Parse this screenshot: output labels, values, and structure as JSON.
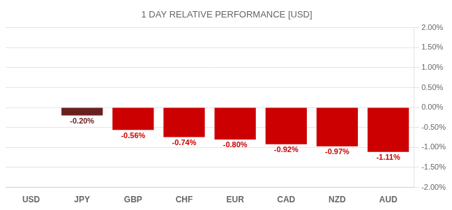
{
  "chart_data": {
    "type": "bar",
    "title": "1 DAY RELATIVE PERFORMANCE [USD]",
    "categories": [
      "USD",
      "JPY",
      "GBP",
      "CHF",
      "EUR",
      "CAD",
      "NZD",
      "AUD"
    ],
    "values": [
      0.0,
      -0.2,
      -0.56,
      -0.74,
      -0.8,
      -0.92,
      -0.97,
      -1.11
    ],
    "value_labels": [
      null,
      "-0.20%",
      "-0.56%",
      "-0.74%",
      "-0.80%",
      "-0.92%",
      "-0.97%",
      "-1.11%"
    ],
    "data_labels": true,
    "colors": [
      "#2b2b2b",
      "#6b2020",
      "#cc0000",
      "#cc0000",
      "#cc0000",
      "#cc0000",
      "#cc0000",
      "#cc0000"
    ],
    "ylim": [
      -2.0,
      2.0
    ],
    "yticks": [
      {
        "value": 2.0,
        "label": "2.00%"
      },
      {
        "value": 1.5,
        "label": "1.50%"
      },
      {
        "value": 1.0,
        "label": "1.00%"
      },
      {
        "value": 0.5,
        "label": "0.50%"
      },
      {
        "value": 0.0,
        "label": "0.00%"
      },
      {
        "value": -0.5,
        "label": "-0.50%"
      },
      {
        "value": -1.0,
        "label": "-1.00%"
      },
      {
        "value": -1.5,
        "label": "-1.50%"
      },
      {
        "value": -2.0,
        "label": "-2.00%"
      }
    ],
    "grid": true
  }
}
